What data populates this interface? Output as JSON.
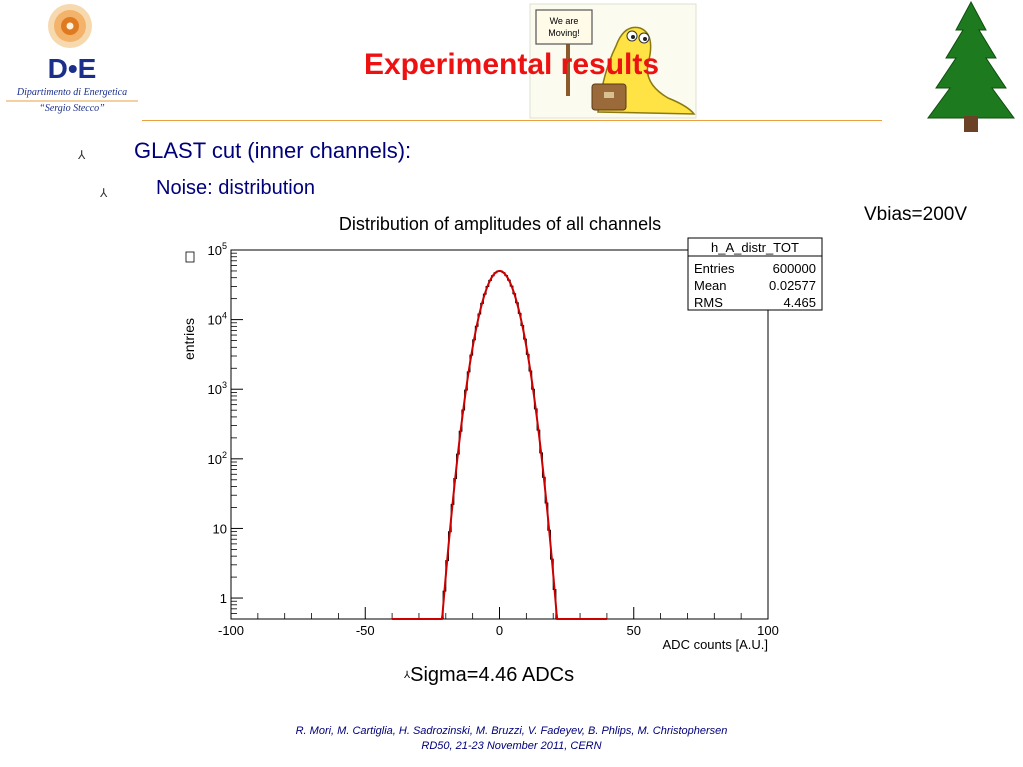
{
  "header": {
    "title": "Experimental results",
    "logo": {
      "name": "D•E",
      "line1": "Dipartimento di Energetica",
      "line2": "“Sergio Stecco”"
    },
    "mascot_sign": [
      "We are",
      "Moving!"
    ]
  },
  "bullets": {
    "level1": "GLAST cut (inner channels):",
    "level2": "Noise: distribution"
  },
  "annotations": {
    "vbias": "Vbias=200V",
    "sigma": "Sigma=4.46 ADCs"
  },
  "footer": {
    "line1": "R. Mori, M. Cartiglia, H. Sadrozinski, M. Bruzzi, V. Fadeyev, B. Phlips, M. Christophersen",
    "line2": "RD50, 21-23 November 2011, CERN"
  },
  "chart_data": {
    "type": "histogram",
    "title": "Distribution of amplitudes of all channels",
    "xlabel": "ADC counts   [A.U.]",
    "ylabel": "entries",
    "xlim": [
      -100,
      100
    ],
    "ylog": true,
    "ylim": [
      0.5,
      100000
    ],
    "x_ticks": [
      "-100",
      "-50",
      "0",
      "50",
      "100"
    ],
    "y_ticks": [
      {
        "value": 100000,
        "base": "10",
        "exp": "5"
      },
      {
        "value": 10000,
        "base": "10",
        "exp": "4"
      },
      {
        "value": 1000,
        "base": "10",
        "exp": "3"
      },
      {
        "value": 100,
        "base": "10",
        "exp": "2"
      },
      {
        "value": 10,
        "base": "10",
        "exp": ""
      },
      {
        "value": 1,
        "base": "1",
        "exp": ""
      }
    ],
    "histogram": {
      "range": [
        -21,
        21
      ],
      "peak_entries": 50000,
      "sigma": 4.46,
      "mean": 0.02577
    },
    "fit": {
      "color": "#cc0000",
      "range": [
        -40,
        40
      ]
    },
    "stats_box": {
      "name": "h_A_distr_TOT",
      "rows": [
        {
          "label": "Entries",
          "value": "600000"
        },
        {
          "label": "Mean",
          "value": "0.02577"
        },
        {
          "label": "RMS",
          "value": "4.465"
        }
      ]
    },
    "grid": false,
    "legend_position": "top-right"
  }
}
